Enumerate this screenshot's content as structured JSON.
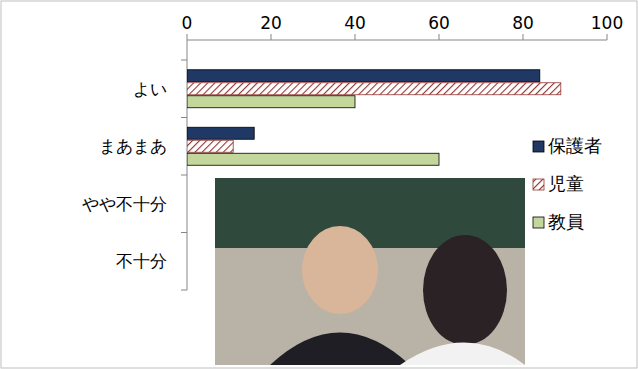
{
  "chart_data": {
    "type": "bar",
    "orientation": "horizontal",
    "categories": [
      "よい",
      "まあまあ",
      "やや不十分",
      "不十分"
    ],
    "series": [
      {
        "name": "保護者",
        "color": "#1f3864",
        "values": [
          84,
          16,
          0,
          0
        ]
      },
      {
        "name": "児童",
        "color": "#943634",
        "marker": "hatch",
        "values": [
          89,
          11,
          0,
          0
        ]
      },
      {
        "name": "教員",
        "color": "#c3d69b",
        "values": [
          40,
          60,
          0,
          0
        ]
      }
    ],
    "ylim": [
      0,
      100
    ],
    "yticks": [
      0,
      20,
      40,
      60,
      80,
      100
    ],
    "grid": false,
    "legend": "right"
  }
}
